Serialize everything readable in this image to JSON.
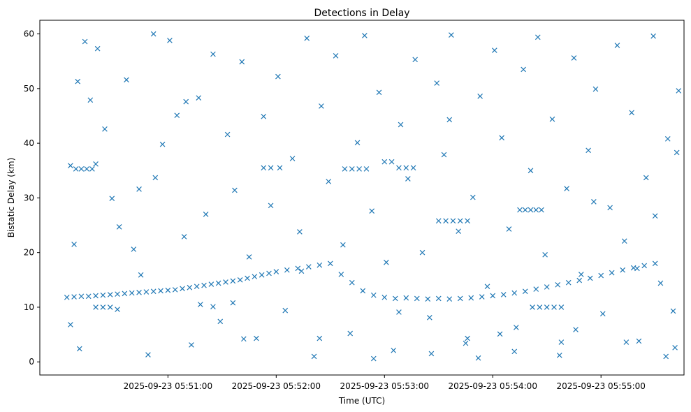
{
  "chart_data": {
    "type": "scatter",
    "title": "Detections in Delay",
    "xlabel": "Time (UTC)",
    "ylabel": "Bistatic Delay (km)",
    "x_range_seconds_of_day": [
      20989,
      21346
    ],
    "ylim": [
      -2.4,
      62.5
    ],
    "x_ticks": [
      "2025-09-23 05:51:00",
      "2025-09-23 05:52:00",
      "2025-09-23 05:53:00",
      "2025-09-23 05:54:00",
      "2025-09-23 05:55:00"
    ],
    "x_tick_seconds": [
      21060,
      21120,
      21180,
      21240,
      21300
    ],
    "y_ticks": [
      0,
      10,
      20,
      30,
      40,
      50,
      60
    ],
    "marker": "x",
    "marker_color": "#1f77b4",
    "grid": false,
    "legend": "none",
    "series": [
      {
        "description": "detections (sampled representative points)",
        "points": [
          [
            21004,
            11.8
          ],
          [
            21008,
            11.9
          ],
          [
            21012,
            12.0
          ],
          [
            21016,
            12.0
          ],
          [
            21020,
            12.1
          ],
          [
            21024,
            12.2
          ],
          [
            21028,
            12.3
          ],
          [
            21032,
            12.4
          ],
          [
            21036,
            12.5
          ],
          [
            21040,
            12.6
          ],
          [
            21044,
            12.7
          ],
          [
            21048,
            12.8
          ],
          [
            21052,
            12.9
          ],
          [
            21056,
            13.0
          ],
          [
            21060,
            13.1
          ],
          [
            21064,
            13.2
          ],
          [
            21068,
            13.4
          ],
          [
            21072,
            13.6
          ],
          [
            21076,
            13.8
          ],
          [
            21080,
            14.0
          ],
          [
            21084,
            14.2
          ],
          [
            21088,
            14.4
          ],
          [
            21092,
            14.6
          ],
          [
            21096,
            14.8
          ],
          [
            21100,
            15.0
          ],
          [
            21104,
            15.3
          ],
          [
            21108,
            15.6
          ],
          [
            21112,
            15.9
          ],
          [
            21116,
            16.2
          ],
          [
            21120,
            16.5
          ],
          [
            21126,
            16.8
          ],
          [
            21132,
            17.1
          ],
          [
            21138,
            17.4
          ],
          [
            21144,
            17.7
          ],
          [
            21150,
            18.0
          ],
          [
            21156,
            16.0
          ],
          [
            21162,
            14.5
          ],
          [
            21168,
            13.0
          ],
          [
            21174,
            12.2
          ],
          [
            21180,
            11.8
          ],
          [
            21186,
            11.6
          ],
          [
            21192,
            11.7
          ],
          [
            21198,
            11.6
          ],
          [
            21204,
            11.5
          ],
          [
            21210,
            11.6
          ],
          [
            21216,
            11.5
          ],
          [
            21222,
            11.6
          ],
          [
            21228,
            11.7
          ],
          [
            21234,
            11.9
          ],
          [
            21240,
            12.1
          ],
          [
            21246,
            12.3
          ],
          [
            21252,
            12.6
          ],
          [
            21258,
            12.9
          ],
          [
            21264,
            13.3
          ],
          [
            21270,
            13.7
          ],
          [
            21276,
            14.1
          ],
          [
            21282,
            14.5
          ],
          [
            21288,
            14.9
          ],
          [
            21294,
            15.3
          ],
          [
            21300,
            15.8
          ],
          [
            21306,
            16.3
          ],
          [
            21312,
            16.8
          ],
          [
            21318,
            17.2
          ],
          [
            21324,
            17.6
          ],
          [
            21330,
            18.0
          ],
          [
            21009,
            35.3
          ],
          [
            21012,
            35.3
          ],
          [
            21015,
            35.3
          ],
          [
            21018,
            35.3
          ],
          [
            21006,
            35.9
          ],
          [
            21020,
            36.2
          ],
          [
            21113,
            35.5
          ],
          [
            21117,
            35.5
          ],
          [
            21122,
            35.5
          ],
          [
            21158,
            35.3
          ],
          [
            21162,
            35.3
          ],
          [
            21166,
            35.3
          ],
          [
            21170,
            35.3
          ],
          [
            21180,
            36.6
          ],
          [
            21184,
            36.6
          ],
          [
            21188,
            35.5
          ],
          [
            21192,
            35.5
          ],
          [
            21196,
            35.5
          ],
          [
            21210,
            25.8
          ],
          [
            21214,
            25.8
          ],
          [
            21218,
            25.8
          ],
          [
            21222,
            25.8
          ],
          [
            21226,
            25.8
          ],
          [
            21255,
            27.8
          ],
          [
            21258,
            27.8
          ],
          [
            21261,
            27.8
          ],
          [
            21264,
            27.8
          ],
          [
            21267,
            27.8
          ],
          [
            21262,
            10.0
          ],
          [
            21266,
            10.0
          ],
          [
            21270,
            10.0
          ],
          [
            21274,
            10.0
          ],
          [
            21278,
            10.0
          ],
          [
            21020,
            10.0
          ],
          [
            21024,
            10.0
          ],
          [
            21028,
            10.0
          ],
          [
            21032,
            9.6
          ],
          [
            21078,
            10.5
          ],
          [
            21085,
            10.1
          ],
          [
            21010,
            51.3
          ],
          [
            21014,
            58.6
          ],
          [
            21017,
            47.9
          ],
          [
            21021,
            57.3
          ],
          [
            21025,
            42.6
          ],
          [
            21029,
            29.9
          ],
          [
            21033,
            24.7
          ],
          [
            21037,
            51.6
          ],
          [
            21041,
            20.6
          ],
          [
            21045,
            15.9
          ],
          [
            21049,
            1.3
          ],
          [
            21053,
            33.7
          ],
          [
            21057,
            39.8
          ],
          [
            21061,
            58.8
          ],
          [
            21065,
            45.1
          ],
          [
            21069,
            22.9
          ],
          [
            21073,
            3.1
          ],
          [
            21077,
            48.3
          ],
          [
            21081,
            27.0
          ],
          [
            21085,
            56.3
          ],
          [
            21089,
            7.4
          ],
          [
            21093,
            41.6
          ],
          [
            21097,
            31.4
          ],
          [
            21101,
            54.9
          ],
          [
            21105,
            19.2
          ],
          [
            21109,
            4.3
          ],
          [
            21113,
            44.9
          ],
          [
            21117,
            28.6
          ],
          [
            21121,
            52.2
          ],
          [
            21125,
            9.4
          ],
          [
            21129,
            37.2
          ],
          [
            21133,
            23.8
          ],
          [
            21137,
            59.2
          ],
          [
            21141,
            1.0
          ],
          [
            21145,
            46.8
          ],
          [
            21149,
            33.0
          ],
          [
            21153,
            56.0
          ],
          [
            21157,
            21.4
          ],
          [
            21161,
            5.2
          ],
          [
            21165,
            40.1
          ],
          [
            21169,
            59.7
          ],
          [
            21173,
            27.6
          ],
          [
            21177,
            49.3
          ],
          [
            21181,
            18.2
          ],
          [
            21185,
            2.1
          ],
          [
            21189,
            43.4
          ],
          [
            21193,
            33.5
          ],
          [
            21197,
            55.3
          ],
          [
            21201,
            20.0
          ],
          [
            21205,
            8.1
          ],
          [
            21209,
            51.0
          ],
          [
            21213,
            37.9
          ],
          [
            21217,
            59.8
          ],
          [
            21221,
            23.9
          ],
          [
            21225,
            3.4
          ],
          [
            21229,
            30.1
          ],
          [
            21233,
            48.6
          ],
          [
            21237,
            13.8
          ],
          [
            21241,
            57.0
          ],
          [
            21245,
            41.0
          ],
          [
            21249,
            24.3
          ],
          [
            21253,
            6.3
          ],
          [
            21257,
            53.5
          ],
          [
            21261,
            35.0
          ],
          [
            21265,
            59.4
          ],
          [
            21269,
            19.6
          ],
          [
            21273,
            44.4
          ],
          [
            21277,
            1.2
          ],
          [
            21281,
            31.7
          ],
          [
            21285,
            55.6
          ],
          [
            21289,
            16.0
          ],
          [
            21293,
            38.7
          ],
          [
            21297,
            49.9
          ],
          [
            21301,
            8.8
          ],
          [
            21305,
            28.2
          ],
          [
            21309,
            57.9
          ],
          [
            21313,
            22.1
          ],
          [
            21317,
            45.6
          ],
          [
            21321,
            3.8
          ],
          [
            21325,
            33.7
          ],
          [
            21329,
            59.6
          ],
          [
            21333,
            14.4
          ],
          [
            21337,
            40.8
          ],
          [
            21341,
            2.6
          ],
          [
            21343,
            49.6
          ],
          [
            21006,
            6.8
          ],
          [
            21011,
            2.4
          ],
          [
            21008,
            21.5
          ],
          [
            21044,
            31.6
          ],
          [
            21052,
            60.0
          ],
          [
            21070,
            47.6
          ],
          [
            21096,
            10.8
          ],
          [
            21102,
            4.2
          ],
          [
            21134,
            16.6
          ],
          [
            21144,
            4.3
          ],
          [
            21174,
            0.6
          ],
          [
            21188,
            9.1
          ],
          [
            21206,
            1.5
          ],
          [
            21216,
            44.3
          ],
          [
            21226,
            4.3
          ],
          [
            21232,
            0.7
          ],
          [
            21244,
            5.1
          ],
          [
            21252,
            1.9
          ],
          [
            21278,
            3.6
          ],
          [
            21286,
            5.9
          ],
          [
            21296,
            29.3
          ],
          [
            21314,
            3.6
          ],
          [
            21336,
            1.0
          ],
          [
            21340,
            9.3
          ],
          [
            21342,
            38.3
          ],
          [
            21330,
            26.7
          ],
          [
            21320,
            17.1
          ]
        ]
      }
    ]
  }
}
